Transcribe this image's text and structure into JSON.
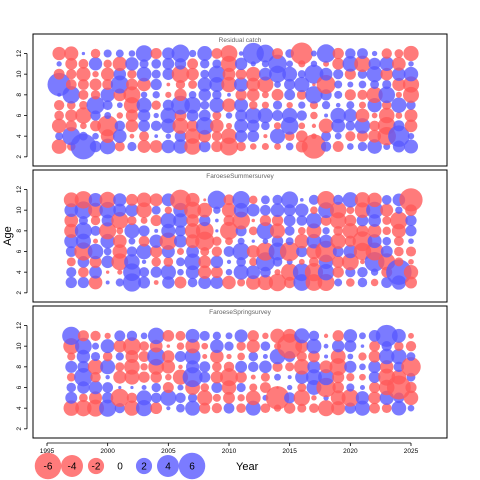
{
  "chart_data": {
    "type": "scatter",
    "ylabel": "Age",
    "xaxis": {
      "range": [
        1995,
        2025
      ],
      "ticks": [
        1995,
        2000,
        2005,
        2010,
        2015,
        2020,
        2025
      ]
    },
    "panels": [
      {
        "title": "Residual catch",
        "years": [
          1996,
          2025
        ],
        "ages": [
          3,
          12
        ],
        "yticks": [
          2,
          4,
          6,
          8,
          10,
          12
        ],
        "ylim": [
          1.5,
          13.5
        ],
        "seed": 11
      },
      {
        "title": "FaroeseSummersurvey",
        "years": [
          1997,
          2025
        ],
        "ages": [
          3,
          11
        ],
        "yticks": [
          2,
          4,
          6,
          8,
          10,
          12
        ],
        "ylim": [
          1.5,
          13.5
        ],
        "seed": 29
      },
      {
        "title": "FaroeseSpringsurvey",
        "years": [
          1997,
          2025
        ],
        "ages": [
          4,
          11
        ],
        "yticks": [
          2,
          4,
          6,
          8,
          10,
          12
        ],
        "ylim": [
          1.5,
          13.5
        ],
        "seed": 47
      }
    ],
    "highlights": [
      {
        "panel": 0,
        "year": 1998,
        "age": 3,
        "value": 5.6
      },
      {
        "panel": 0,
        "year": 2016,
        "age": 12,
        "value": -4.0
      },
      {
        "panel": 0,
        "year": 2017,
        "age": 3,
        "value": -5.0
      },
      {
        "panel": 0,
        "year": 1996,
        "age": 9,
        "value": 4.5
      },
      {
        "panel": 0,
        "year": 2024,
        "age": 4,
        "value": 3.8
      },
      {
        "panel": 1,
        "year": 2025,
        "age": 11,
        "value": -4.5
      },
      {
        "panel": 1,
        "year": 2024,
        "age": 4,
        "value": 5.5
      },
      {
        "panel": 1,
        "year": 2018,
        "age": 6,
        "value": -3.8
      },
      {
        "panel": 2,
        "year": 2015,
        "age": 10,
        "value": -5.3
      },
      {
        "panel": 2,
        "year": 2014,
        "age": 5,
        "value": -4.6
      },
      {
        "panel": 2,
        "year": 2024,
        "age": 6,
        "value": -4.8
      },
      {
        "panel": 2,
        "year": 2023,
        "age": 11,
        "value": 4.0
      }
    ],
    "legend": {
      "title": "Year",
      "values": [
        -6,
        -4,
        -2,
        0,
        2,
        4,
        6
      ],
      "labels": [
        "-6",
        "-4",
        "-2",
        "0",
        "2",
        "4",
        "6"
      ]
    },
    "colors": {
      "negative": "#ff5a5a",
      "positive": "#5a5aff",
      "opacity": 0.8,
      "axis": "#000000",
      "title": "#666666"
    }
  }
}
